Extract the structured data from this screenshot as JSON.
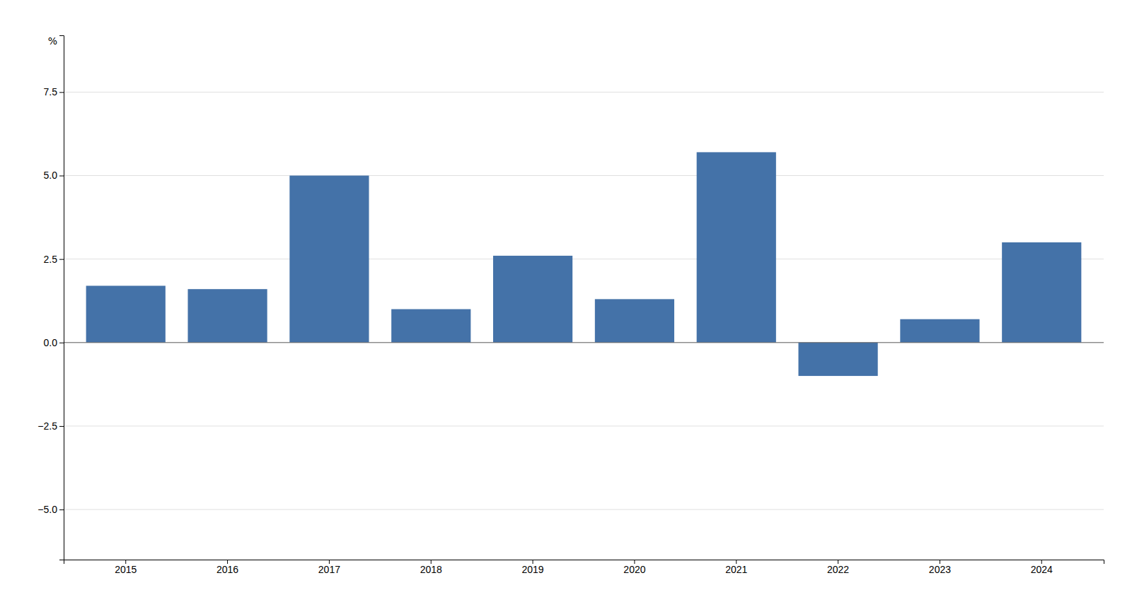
{
  "chart_data": {
    "type": "bar",
    "categories": [
      "2015",
      "2016",
      "2017",
      "2018",
      "2019",
      "2020",
      "2021",
      "2022",
      "2023",
      "2024"
    ],
    "values": [
      1.7,
      1.6,
      5.0,
      1.0,
      2.6,
      1.3,
      5.7,
      -1.0,
      0.7,
      3.0
    ],
    "color": "#4472a8",
    "ylabel": "%",
    "ylim": [
      -6.5,
      9.2
    ],
    "yticks": [
      {
        "value": -5.0,
        "label": "−5.0"
      },
      {
        "value": -2.5,
        "label": "−2.5"
      },
      {
        "value": 0.0,
        "label": "0.0"
      },
      2.5,
      {
        "value": 5.0,
        "label": "5.0"
      },
      7.5
    ],
    "grid": true
  }
}
